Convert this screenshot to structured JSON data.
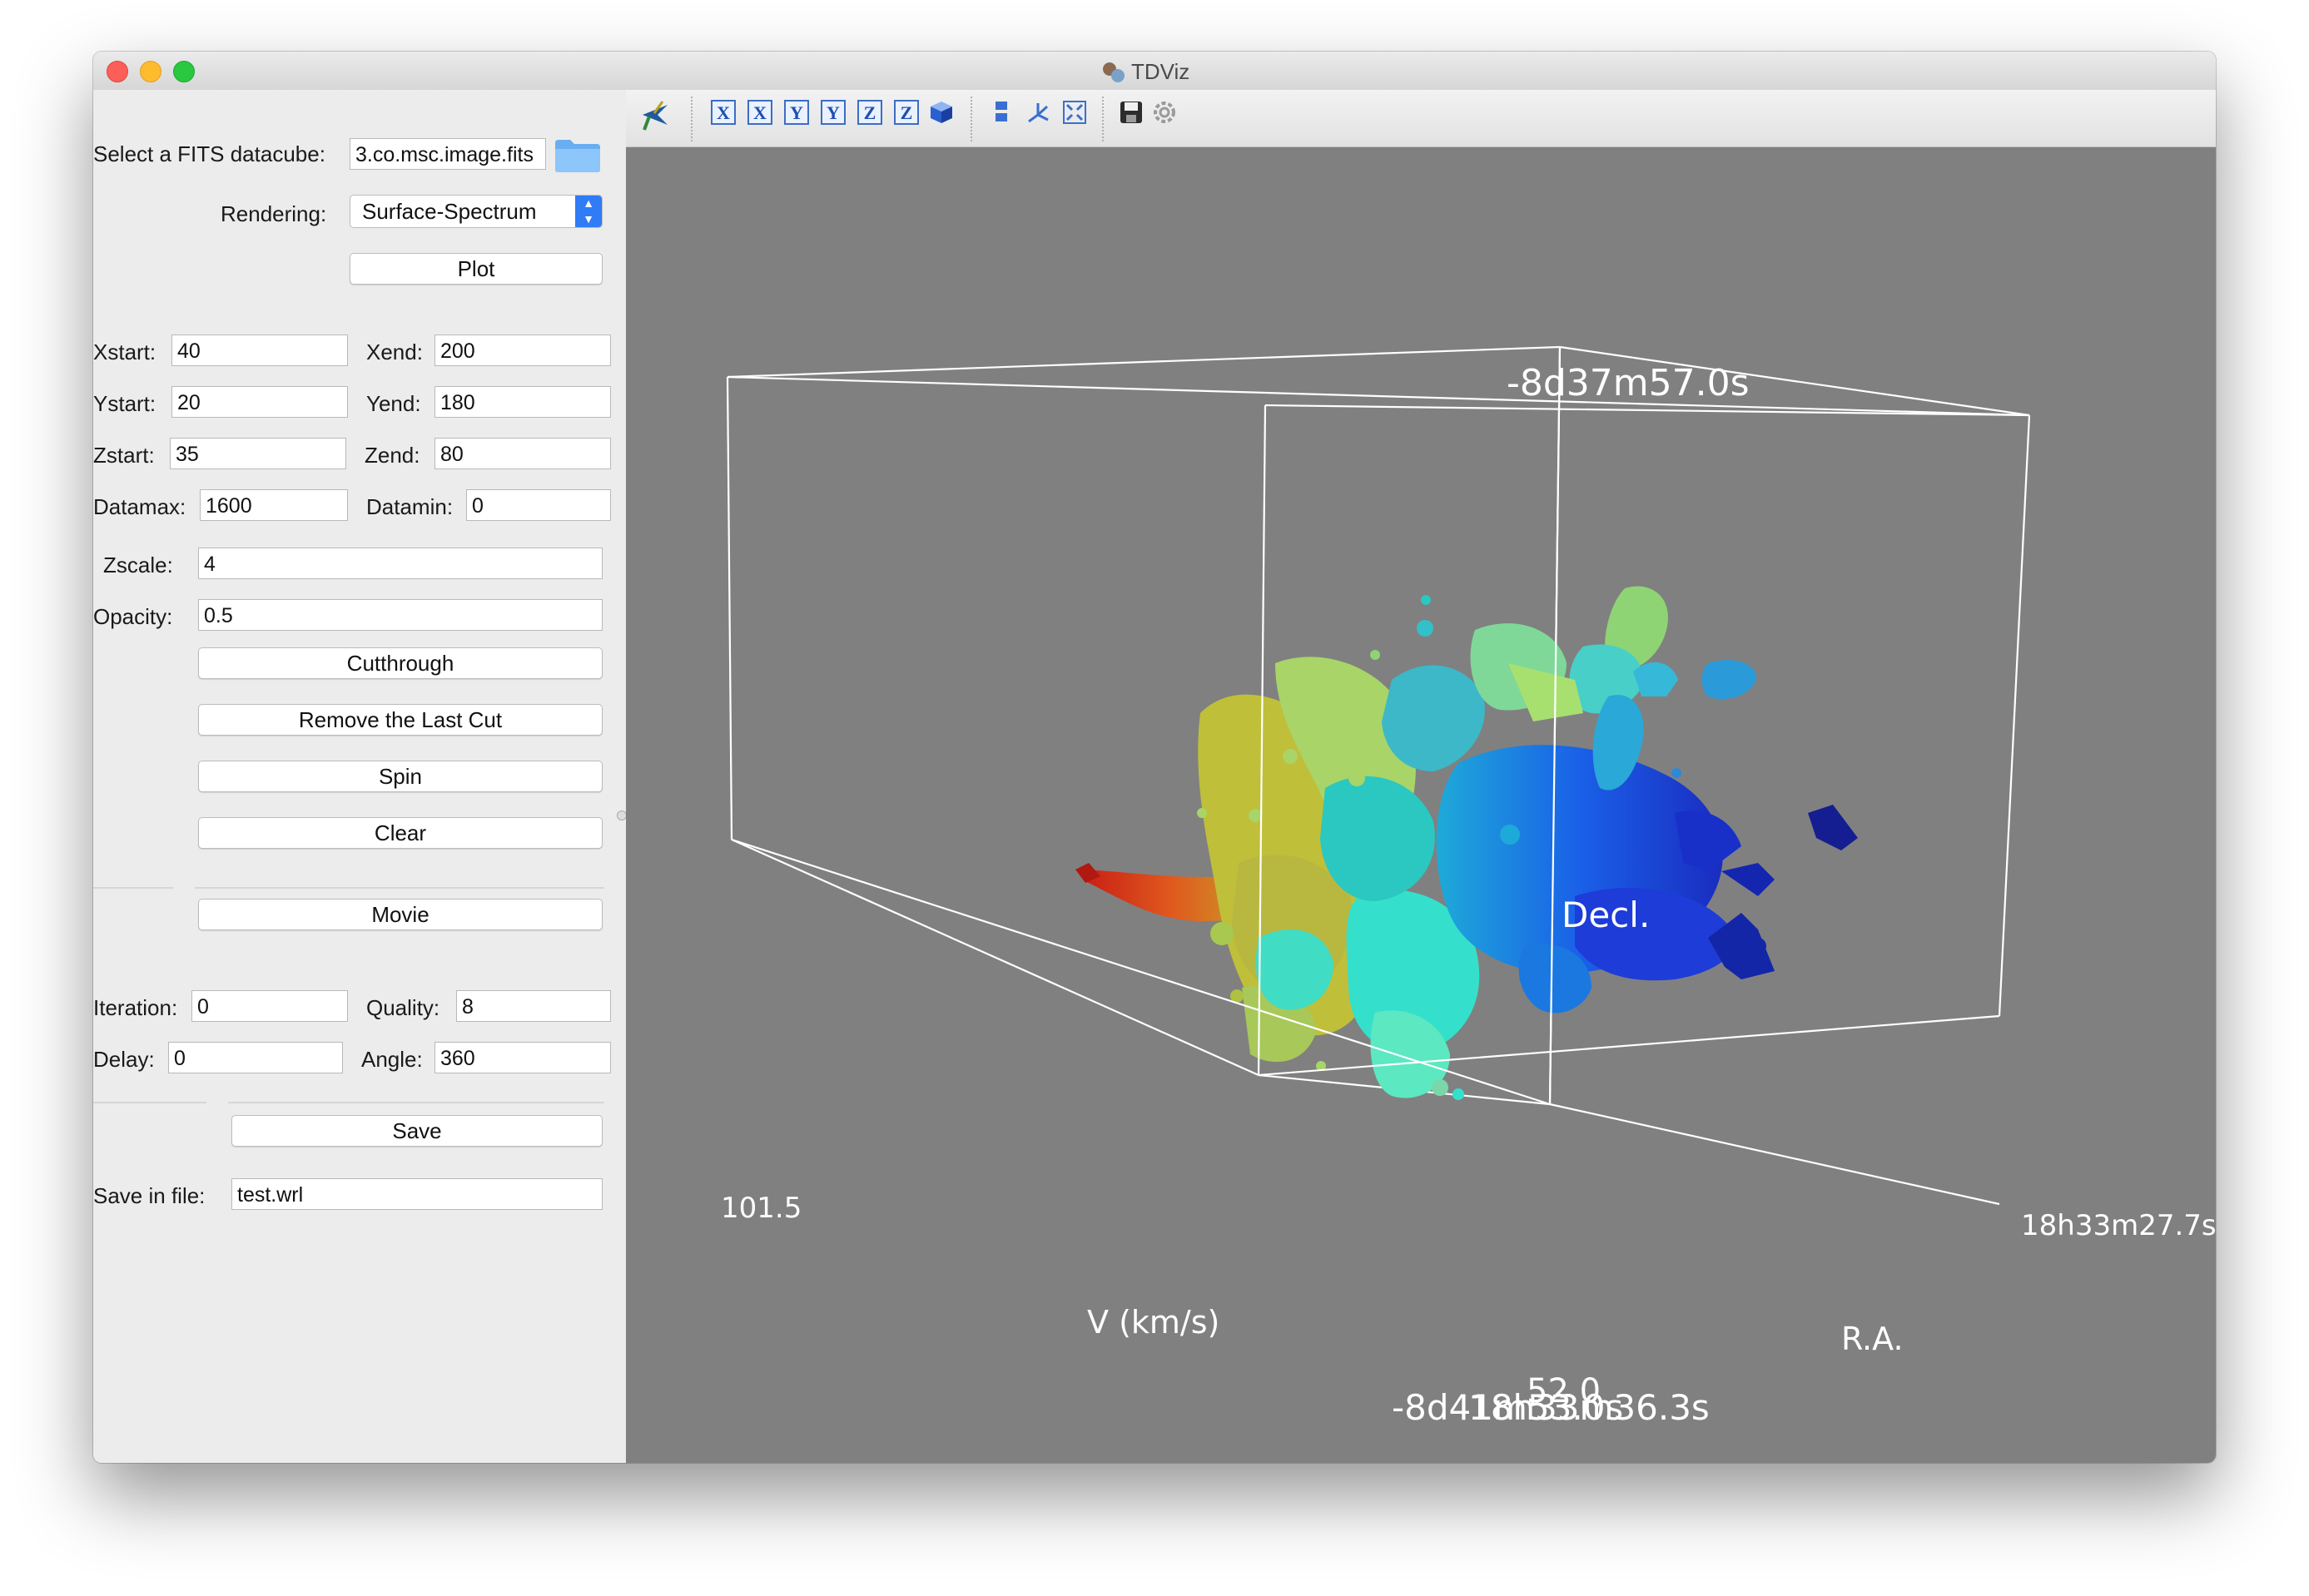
{
  "window": {
    "title": "TDViz"
  },
  "panel": {
    "datacube_label": "Select a FITS datacube:",
    "datacube_value": "3.co.msc.image.fits",
    "rendering_label": "Rendering:",
    "rendering_value": "Surface-Spectrum",
    "plot_button": "Plot",
    "xstart_label": "Xstart:",
    "xstart_value": "40",
    "xend_label": "Xend:",
    "xend_value": "200",
    "ystart_label": "Ystart:",
    "ystart_value": "20",
    "yend_label": "Yend:",
    "yend_value": "180",
    "zstart_label": "Zstart:",
    "zstart_value": "35",
    "zend_label": "Zend:",
    "zend_value": "80",
    "datamax_label": "Datamax:",
    "datamax_value": "1600",
    "datamin_label": "Datamin:",
    "datamin_value": "0",
    "zscale_label": "Zscale:",
    "zscale_value": "4",
    "opacity_label": "Opacity:",
    "opacity_value": "0.5",
    "cutthrough_button": "Cutthrough",
    "remove_cut_button": "Remove the Last Cut",
    "spin_button": "Spin",
    "clear_button": "Clear",
    "movie_button": "Movie",
    "iteration_label": "Iteration:",
    "iteration_value": "0",
    "quality_label": "Quality:",
    "quality_value": "8",
    "delay_label": "Delay:",
    "delay_value": "0",
    "angle_label": "Angle:",
    "angle_value": "360",
    "save_button": "Save",
    "save_file_label": "Save in file:",
    "save_file_value": "test.wrl"
  },
  "toolbar": {
    "icons": [
      "interact-arrow-icon",
      "view-x-plus-icon",
      "view-x-minus-icon",
      "view-y-plus-icon",
      "view-y-minus-icon",
      "view-z-plus-icon",
      "view-z-minus-icon",
      "isometric-cube-icon",
      "parallel-projection-icon",
      "axes-icon",
      "fit-all-icon",
      "save-image-icon",
      "settings-icon"
    ],
    "x_letter": "X",
    "y_letter": "Y",
    "z_letter": "Z"
  },
  "scene": {
    "dec_top_label": "-8d37m57.0s",
    "dec_axis_title": "Decl.",
    "velocity_start_label": "101.5",
    "velocity_axis_title": "V (km/s)",
    "ra_label": "18h33m27.7s",
    "ra_axis_title": "R.A.",
    "overlap_label_1": "-8d41m53.0s",
    "overlap_label_2": "18h33m36.3s",
    "overlap_label_3": "52.0",
    "colors": {
      "background": "#808080",
      "axis": "#ffffff",
      "red": "#e0301e",
      "yellow": "#c8c840",
      "cyan": "#30e0d0",
      "blue": "#1a40e0",
      "navy": "#141e90"
    }
  }
}
